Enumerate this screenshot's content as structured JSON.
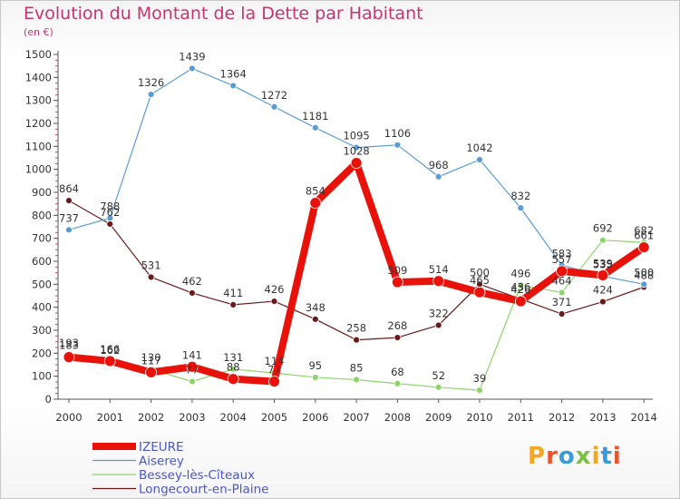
{
  "title": "Evolution du Montant de la Dette par Habitant",
  "unit": "(en €)",
  "logo": {
    "text": "Proxiti",
    "colors": [
      "#f5a623",
      "#e8542c",
      "#3a9bd9",
      "#7ac143",
      "#f5a623",
      "#3a9bd9",
      "#e8542c"
    ]
  },
  "chart_data": {
    "type": "line",
    "x": [
      "2000",
      "2001",
      "2002",
      "2003",
      "2004",
      "2005",
      "2006",
      "2007",
      "2008",
      "2009",
      "2010",
      "2011",
      "2012",
      "2013",
      "2014"
    ],
    "ylim": [
      0,
      1500
    ],
    "yticks": [
      0,
      100,
      200,
      300,
      400,
      500,
      600,
      700,
      800,
      900,
      1000,
      1100,
      1200,
      1300,
      1400,
      1500
    ],
    "grid": false,
    "legend": "bottom-left",
    "series": [
      {
        "name": "Longecourt-en-Plaine",
        "color": "#6b1a1a",
        "width": 1.2,
        "marker": 3.5,
        "values": [
          864,
          762,
          531,
          462,
          411,
          426,
          348,
          258,
          268,
          322,
          500,
          436,
          371,
          424,
          488
        ]
      },
      {
        "name": "Bessey-lès-Cîteaux",
        "color": "#8fd46a",
        "width": 1.2,
        "marker": 3.5,
        "values": [
          193,
          162,
          130,
          77,
          131,
          114,
          95,
          85,
          68,
          52,
          39,
          496,
          464,
          692,
          682
        ]
      },
      {
        "name": "Aiserey",
        "color": "#5b9bd5",
        "width": 1.2,
        "marker": 3.5,
        "values": [
          737,
          788,
          1326,
          1439,
          1364,
          1272,
          1181,
          1095,
          1106,
          968,
          1042,
          832,
          583,
          535,
          500
        ]
      },
      {
        "name": "IZEURE",
        "color": "#e8120a",
        "width": 8,
        "marker": 6,
        "values": [
          183,
          166,
          117,
          141,
          88,
          77,
          854,
          1028,
          509,
          514,
          465,
          426,
          557,
          539,
          661
        ]
      }
    ],
    "legend_order": [
      "IZEURE",
      "Aiserey",
      "Bessey-lès-Cîteaux",
      "Longecourt-en-Plaine"
    ]
  }
}
